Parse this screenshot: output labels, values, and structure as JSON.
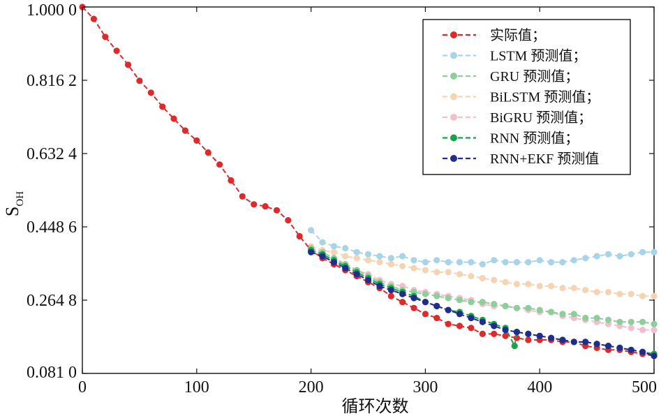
{
  "chart_data": {
    "type": "line",
    "xlabel": "循环次数",
    "ylabel": "S",
    "ylabel_sub": "OH",
    "xlim": [
      0,
      500
    ],
    "ylim": [
      0.081,
      1.0
    ],
    "x_ticks": [
      0,
      100,
      200,
      300,
      400,
      500
    ],
    "x_tick_labels": [
      "0",
      "100",
      "200",
      "300",
      "400",
      "500"
    ],
    "y_ticks": [
      0.081,
      0.2648,
      0.4486,
      0.6324,
      0.8162,
      1.0
    ],
    "y_tick_labels": [
      "0.081 0",
      "0.264 8",
      "0.448 6",
      "0.632 4",
      "0.816 2",
      "1.000 0"
    ],
    "grid": false,
    "legend_position": "top-right",
    "series": [
      {
        "name": "实际值；",
        "color": "#dd2a2a",
        "x": [
          0,
          10,
          20,
          30,
          40,
          50,
          60,
          70,
          80,
          90,
          100,
          110,
          120,
          130,
          140,
          150,
          160,
          170,
          180,
          190,
          200,
          210,
          220,
          230,
          240,
          250,
          260,
          270,
          280,
          290,
          300,
          310,
          320,
          330,
          340,
          350,
          360,
          370,
          380,
          390,
          400,
          410,
          420,
          430,
          440,
          450,
          460,
          470,
          480,
          490,
          500
        ],
        "values": [
          1.0,
          0.97,
          0.925,
          0.89,
          0.855,
          0.815,
          0.785,
          0.75,
          0.72,
          0.69,
          0.665,
          0.635,
          0.605,
          0.565,
          0.525,
          0.505,
          0.5,
          0.49,
          0.465,
          0.425,
          0.39,
          0.37,
          0.355,
          0.34,
          0.325,
          0.31,
          0.295,
          0.275,
          0.26,
          0.245,
          0.23,
          0.22,
          0.205,
          0.2,
          0.195,
          0.18,
          0.18,
          0.175,
          0.17,
          0.165,
          0.165,
          0.165,
          0.16,
          0.16,
          0.15,
          0.145,
          0.14,
          0.14,
          0.135,
          0.13,
          0.125
        ]
      },
      {
        "name": "LSTM 预测值；",
        "color": "#a8d4ea",
        "x": [
          200,
          210,
          220,
          230,
          240,
          250,
          260,
          270,
          280,
          290,
          300,
          310,
          320,
          330,
          340,
          350,
          360,
          370,
          380,
          390,
          400,
          410,
          420,
          430,
          440,
          450,
          460,
          470,
          480,
          490,
          500
        ],
        "values": [
          0.44,
          0.41,
          0.4,
          0.395,
          0.385,
          0.38,
          0.375,
          0.37,
          0.375,
          0.365,
          0.36,
          0.365,
          0.36,
          0.36,
          0.36,
          0.355,
          0.365,
          0.36,
          0.36,
          0.36,
          0.365,
          0.36,
          0.36,
          0.365,
          0.37,
          0.375,
          0.38,
          0.375,
          0.38,
          0.385,
          0.385
        ]
      },
      {
        "name": "GRU 预测值；",
        "color": "#8dce9a",
        "x": [
          200,
          210,
          220,
          230,
          240,
          250,
          260,
          270,
          280,
          290,
          300,
          310,
          320,
          330,
          340,
          350,
          360,
          370,
          380,
          390,
          400,
          410,
          420,
          430,
          440,
          450,
          460,
          470,
          480,
          490,
          500
        ],
        "values": [
          0.395,
          0.385,
          0.37,
          0.355,
          0.34,
          0.325,
          0.31,
          0.3,
          0.29,
          0.285,
          0.28,
          0.275,
          0.27,
          0.265,
          0.26,
          0.26,
          0.255,
          0.25,
          0.245,
          0.245,
          0.24,
          0.235,
          0.23,
          0.23,
          0.22,
          0.22,
          0.215,
          0.21,
          0.21,
          0.21,
          0.205
        ]
      },
      {
        "name": "BiLSTM 预测值；",
        "color": "#f5d4b3",
        "x": [
          200,
          210,
          220,
          230,
          240,
          250,
          260,
          270,
          280,
          290,
          300,
          310,
          320,
          330,
          340,
          350,
          360,
          370,
          380,
          390,
          400,
          410,
          420,
          430,
          440,
          450,
          460,
          470,
          480,
          490,
          500
        ],
        "values": [
          0.4,
          0.39,
          0.385,
          0.375,
          0.37,
          0.365,
          0.36,
          0.355,
          0.35,
          0.345,
          0.34,
          0.335,
          0.335,
          0.33,
          0.325,
          0.32,
          0.315,
          0.31,
          0.305,
          0.305,
          0.3,
          0.3,
          0.295,
          0.295,
          0.29,
          0.285,
          0.285,
          0.28,
          0.28,
          0.275,
          0.275
        ]
      },
      {
        "name": "BiGRU 预测值；",
        "color": "#f2c0cc",
        "x": [
          200,
          210,
          220,
          230,
          240,
          250,
          260,
          270,
          280,
          290,
          300,
          310,
          320,
          330,
          340,
          350,
          360,
          370,
          380,
          390,
          400,
          410,
          420,
          430,
          440,
          450,
          460,
          470,
          480,
          490,
          500
        ],
        "values": [
          0.39,
          0.375,
          0.36,
          0.35,
          0.34,
          0.33,
          0.315,
          0.305,
          0.3,
          0.29,
          0.285,
          0.28,
          0.275,
          0.27,
          0.265,
          0.255,
          0.25,
          0.25,
          0.245,
          0.24,
          0.235,
          0.235,
          0.225,
          0.22,
          0.215,
          0.21,
          0.205,
          0.2,
          0.195,
          0.19,
          0.19
        ]
      },
      {
        "name": "RNN 预测值；",
        "color": "#1aa34a",
        "x": [
          200,
          210,
          220,
          230,
          240,
          250,
          260,
          270,
          280,
          290,
          300,
          310,
          320,
          330,
          340,
          350,
          360,
          370,
          378,
          380,
          390,
          400,
          410,
          420,
          430,
          440,
          450,
          460,
          470,
          480,
          490,
          500
        ],
        "values": [
          0.39,
          0.38,
          0.365,
          0.35,
          0.335,
          0.32,
          0.305,
          0.295,
          0.285,
          0.275,
          0.26,
          0.25,
          0.24,
          0.235,
          0.225,
          0.215,
          0.205,
          0.195,
          0.15,
          0.185,
          0.18,
          0.175,
          0.17,
          0.165,
          0.16,
          0.16,
          0.155,
          0.15,
          0.145,
          0.14,
          0.135,
          0.13
        ]
      },
      {
        "name": "RNN+EKF 预测值",
        "color": "#1f2d8f",
        "x": [
          200,
          210,
          220,
          230,
          240,
          250,
          260,
          270,
          280,
          290,
          300,
          310,
          320,
          330,
          340,
          350,
          360,
          370,
          380,
          390,
          400,
          410,
          420,
          430,
          440,
          450,
          460,
          470,
          480,
          490,
          500
        ],
        "values": [
          0.385,
          0.375,
          0.36,
          0.345,
          0.33,
          0.315,
          0.3,
          0.29,
          0.28,
          0.27,
          0.26,
          0.25,
          0.24,
          0.23,
          0.22,
          0.21,
          0.2,
          0.19,
          0.185,
          0.18,
          0.175,
          0.17,
          0.165,
          0.16,
          0.16,
          0.155,
          0.15,
          0.145,
          0.14,
          0.135,
          0.125
        ]
      }
    ]
  }
}
